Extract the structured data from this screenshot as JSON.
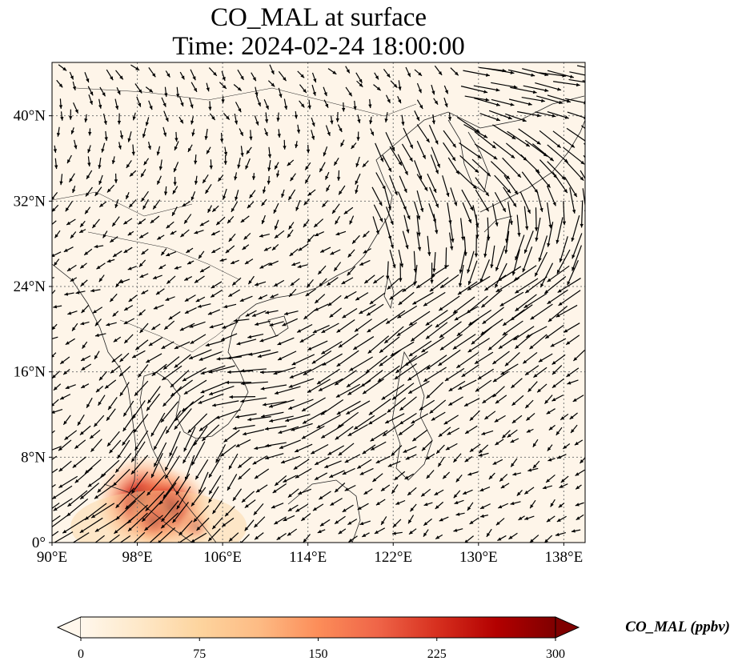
{
  "title": {
    "line1": "CO_MAL at surface",
    "line2": "Time: 2024-02-24 18:00:00"
  },
  "map": {
    "projection": "PlateCarree",
    "lon_range": [
      90,
      140
    ],
    "lat_range": [
      0,
      45
    ],
    "background_color": "#fef5e9",
    "gridlines": "dotted",
    "x_ticks": [
      {
        "value": 90,
        "label": "90°E"
      },
      {
        "value": 98,
        "label": "98°E"
      },
      {
        "value": 106,
        "label": "106°E"
      },
      {
        "value": 114,
        "label": "114°E"
      },
      {
        "value": 122,
        "label": "122°E"
      },
      {
        "value": 130,
        "label": "130°E"
      },
      {
        "value": 138,
        "label": "138°E"
      }
    ],
    "y_ticks": [
      {
        "value": 0,
        "label": "0°"
      },
      {
        "value": 8,
        "label": "8°N"
      },
      {
        "value": 16,
        "label": "16°N"
      },
      {
        "value": 24,
        "label": "24°N"
      },
      {
        "value": 32,
        "label": "32°N"
      },
      {
        "value": 40,
        "label": "40°N"
      }
    ],
    "overlay": "wind vectors (quiver)",
    "coastlines": true
  },
  "colorbar": {
    "label": "CO_MAL (ppbv)",
    "colormap": "OrRd",
    "extend": "both",
    "min": 0,
    "max": 300,
    "ticks": [
      {
        "value": 0,
        "label": "0"
      },
      {
        "value": 75,
        "label": "75"
      },
      {
        "value": 150,
        "label": "150"
      },
      {
        "value": 225,
        "label": "225"
      },
      {
        "value": 300,
        "label": "300"
      }
    ],
    "colors": [
      "#fff7ec",
      "#fee8c8",
      "#fdd49e",
      "#fdbb84",
      "#fc8d59",
      "#ef6548",
      "#d7301f",
      "#b30000",
      "#7f0000"
    ]
  },
  "chart_data": {
    "type": "heatmap",
    "title": "CO_MAL at surface\nTime: 2024-02-24 18:00:00",
    "xlabel": "",
    "ylabel": "",
    "xlim": [
      90,
      140
    ],
    "ylim": [
      0,
      45
    ],
    "value_range": [
      0,
      300
    ],
    "hotspots": [
      {
        "lon": 98.5,
        "lat": 3.8,
        "value": 280
      },
      {
        "lon": 101.0,
        "lat": 3.2,
        "value": 240
      },
      {
        "lon": 99.5,
        "lat": 2.0,
        "value": 120
      },
      {
        "lon": 103.5,
        "lat": 1.5,
        "value": 60
      }
    ]
  }
}
